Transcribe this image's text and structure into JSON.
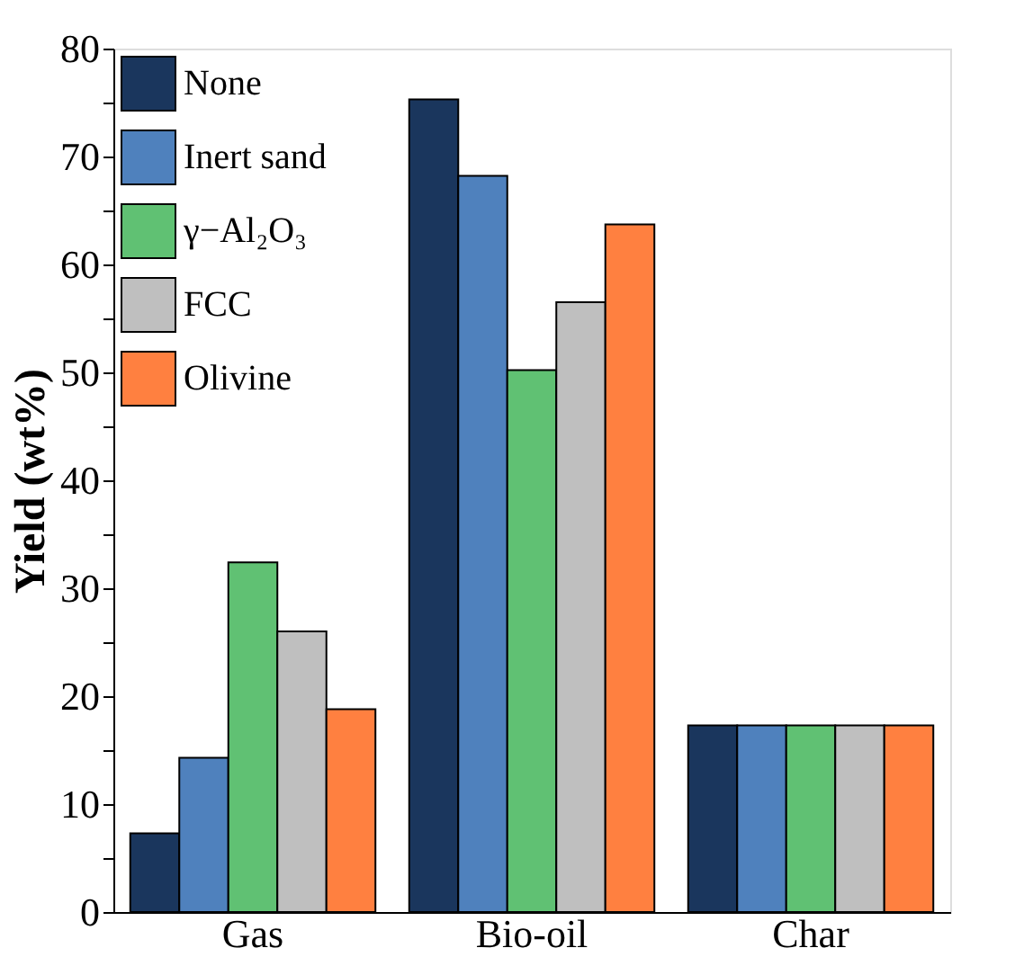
{
  "chart_data": {
    "type": "bar",
    "ylabel": "Yield (wt%)",
    "categories": [
      "Gas",
      "Bio-oil",
      "Char"
    ],
    "series": [
      {
        "name": "None",
        "color": "#1a365d",
        "values": [
          7.3,
          75.3,
          17.3
        ]
      },
      {
        "name": "Inert sand",
        "color": "#4f81bd",
        "values": [
          14.3,
          68.2,
          17.3
        ]
      },
      {
        "name": "γ−Al₂O₃",
        "color": "#60c173",
        "values": [
          32.4,
          50.2,
          17.3
        ]
      },
      {
        "name": "FCC",
        "color": "#bfbfbf",
        "values": [
          26.0,
          56.5,
          17.3
        ]
      },
      {
        "name": "Olivine",
        "color": "#ff8040",
        "values": [
          18.8,
          63.7,
          17.3
        ]
      }
    ],
    "ylim": [
      0,
      80
    ],
    "yticks": [
      0,
      {
        "value": 5,
        "label": null
      },
      10,
      {
        "value": 15,
        "label": null
      },
      20,
      {
        "value": 25,
        "label": null
      },
      30,
      {
        "value": 35,
        "label": null
      },
      40,
      {
        "value": 45,
        "label": null
      },
      50,
      {
        "value": 55,
        "label": null
      },
      60,
      {
        "value": 65,
        "label": null
      },
      70,
      {
        "value": 75,
        "label": null
      },
      80
    ],
    "grid": false,
    "legend": "top left"
  }
}
